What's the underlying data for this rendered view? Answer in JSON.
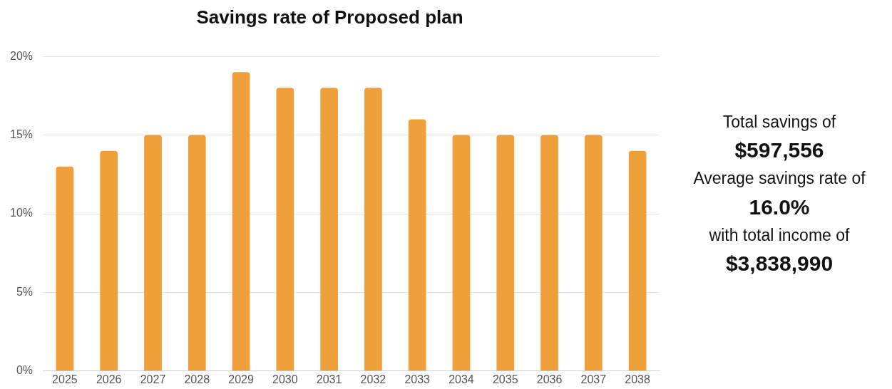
{
  "chart_data": {
    "type": "bar",
    "title": "Savings rate of Proposed plan",
    "categories": [
      "2025",
      "2026",
      "2027",
      "2028",
      "2029",
      "2030",
      "2031",
      "2032",
      "2033",
      "2034",
      "2035",
      "2036",
      "2037",
      "2038"
    ],
    "values": [
      13,
      14,
      15,
      15,
      19,
      18,
      18,
      18,
      16,
      15,
      15,
      15,
      15,
      14
    ],
    "color": "#f0a03a",
    "ylim": [
      0,
      20
    ],
    "yticks": [
      {
        "value": 0,
        "label": "0%"
      },
      {
        "value": 5,
        "label": "5%"
      },
      {
        "value": 10,
        "label": "10%"
      },
      {
        "value": 15,
        "label": "15%"
      },
      {
        "value": 20,
        "label": "20%"
      }
    ],
    "grid": "y",
    "annotations": [
      "Total savings of",
      "$597,556",
      "Average savings rate of",
      "16.0%",
      "with total income of",
      "$3,838,990"
    ]
  }
}
